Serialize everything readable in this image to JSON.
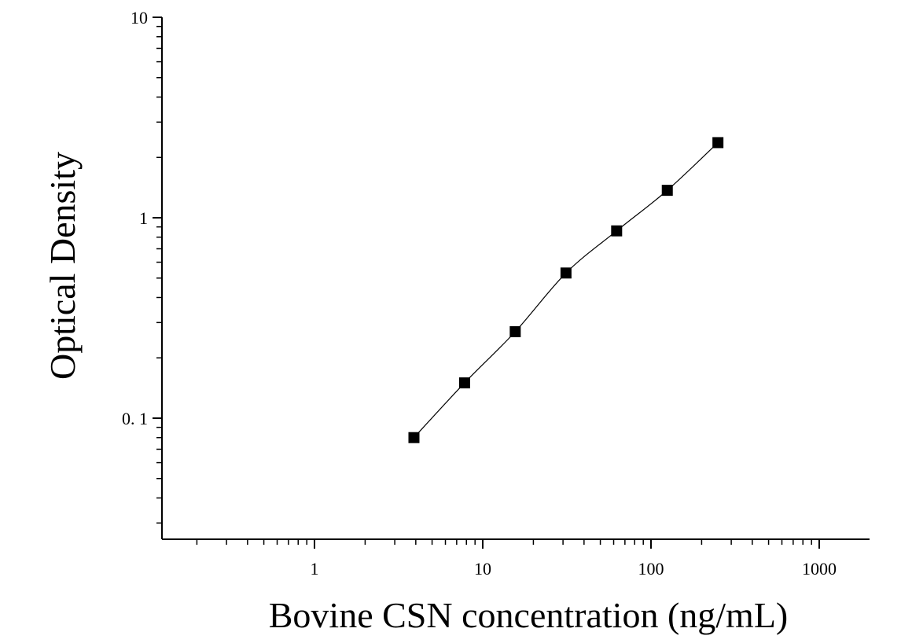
{
  "chart_data": {
    "type": "scatter",
    "xlabel": "Bovine CSN concentration (ng/mL)",
    "ylabel": "Optical Density",
    "x_scale": "log",
    "y_scale": "log",
    "xlim": [
      0.1,
      2000
    ],
    "ylim": [
      0.022,
      10
    ],
    "x_ticks": [
      {
        "value": 1,
        "label": "1"
      },
      {
        "value": 10,
        "label": "10"
      },
      {
        "value": 100,
        "label": "100"
      },
      {
        "value": 1000,
        "label": "1000"
      }
    ],
    "y_ticks": [
      {
        "value": 0.1,
        "label": "0. 1"
      },
      {
        "value": 1,
        "label": "1"
      },
      {
        "value": 10,
        "label": "10"
      }
    ],
    "grid": false,
    "marker": "square",
    "marker_color": "#000000",
    "points": [
      {
        "x": 3.9,
        "y": 0.08
      },
      {
        "x": 7.8,
        "y": 0.15
      },
      {
        "x": 15.6,
        "y": 0.27
      },
      {
        "x": 31.25,
        "y": 0.53
      },
      {
        "x": 62.5,
        "y": 0.86
      },
      {
        "x": 125,
        "y": 1.37
      },
      {
        "x": 250,
        "y": 2.37
      }
    ],
    "fit_curve": true
  }
}
